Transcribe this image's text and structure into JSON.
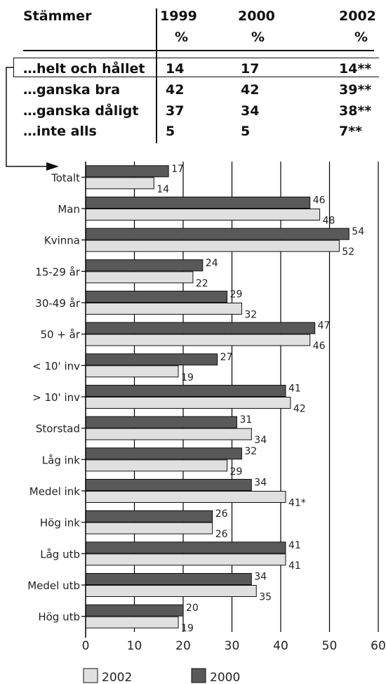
{
  "table": {
    "header": {
      "label": "Stämmer",
      "columns": [
        {
          "year": "1999",
          "unit": "%"
        },
        {
          "year": "2000",
          "unit": "%"
        },
        {
          "year": "2002",
          "unit": "%"
        }
      ]
    },
    "rows": [
      {
        "label": "…helt och hållet",
        "values": [
          "14",
          "17",
          "14**"
        ]
      },
      {
        "label": "…ganska bra",
        "values": [
          "42",
          "42",
          "39**"
        ]
      },
      {
        "label": "…ganska dåligt",
        "values": [
          "37",
          "34",
          "38**"
        ]
      },
      {
        "label": "…inte alls",
        "values": [
          "5",
          "5",
          "7**"
        ]
      }
    ]
  },
  "chart_data": {
    "type": "bar",
    "orientation": "horizontal",
    "categories": [
      "Totalt",
      "Man",
      "Kvinna",
      "15-29 år",
      "30-49 år",
      "50 + år",
      "< 10' inv",
      "> 10' inv",
      "Storstad",
      "Låg ink",
      "Medel ink",
      "Hög ink",
      "Låg utb",
      "Medel utb",
      "Hög utb"
    ],
    "series": [
      {
        "name": "2000",
        "color": "#595959",
        "values": [
          17,
          46,
          54,
          24,
          29,
          47,
          27,
          41,
          31,
          32,
          34,
          26,
          41,
          34,
          20
        ],
        "labels": [
          "17",
          "46",
          "54",
          "24",
          "29",
          "47",
          "27",
          "41",
          "31",
          "32",
          "34",
          "26",
          "41",
          "34",
          "20"
        ]
      },
      {
        "name": "2002",
        "color": "#e0e0e0",
        "values": [
          14,
          48,
          52,
          22,
          32,
          46,
          19,
          42,
          34,
          29,
          41,
          26,
          41,
          35,
          19
        ],
        "labels": [
          "14",
          "48",
          "52",
          "22",
          "32",
          "46",
          "19",
          "42",
          "34",
          "29",
          "41*",
          "26",
          "41",
          "35",
          "19"
        ]
      }
    ],
    "xlim": [
      0,
      60
    ],
    "xticks": [
      "0",
      "10",
      "20",
      "30",
      "40",
      "50",
      "60"
    ],
    "grid": true,
    "legend": "bottom",
    "legend_order": [
      "2002",
      "2000"
    ]
  }
}
